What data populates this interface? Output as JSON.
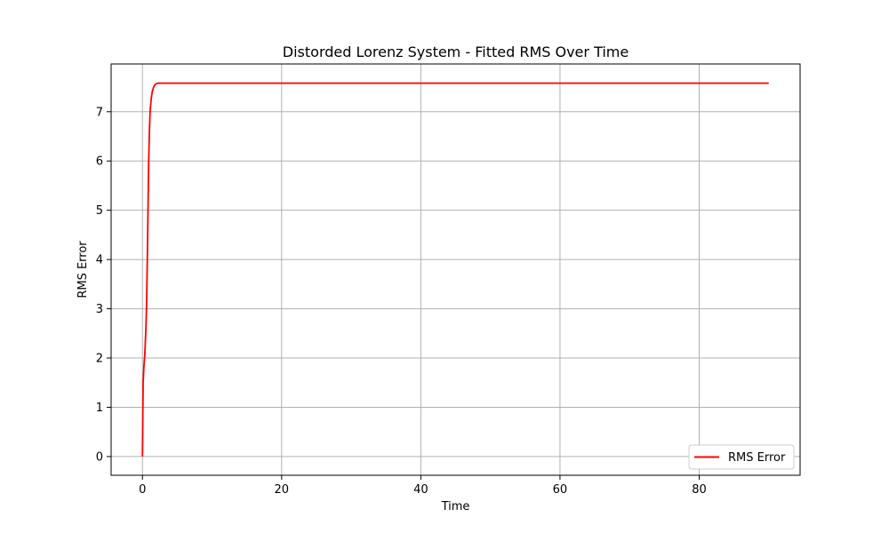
{
  "chart_data": {
    "type": "line",
    "title": "Distorded Lorenz System - Fitted RMS Over Time",
    "xlabel": "Time",
    "ylabel": "RMS Error",
    "xlim": [
      -4.5,
      94.5
    ],
    "ylim": [
      -0.38,
      7.97
    ],
    "xticks": [
      0,
      20,
      40,
      60,
      80
    ],
    "yticks": [
      0,
      1,
      2,
      3,
      4,
      5,
      6,
      7
    ],
    "grid": true,
    "legend_position": "lower right",
    "series": [
      {
        "name": "RMS Error",
        "color": "#ff0000",
        "x": [
          0,
          0.1,
          0.2,
          0.35,
          0.5,
          0.6,
          0.7,
          0.8,
          0.9,
          1.0,
          1.1,
          1.25,
          1.4,
          1.6,
          1.8,
          2.0,
          2.3,
          2.7,
          3.0,
          5,
          10,
          20,
          40,
          60,
          80,
          90
        ],
        "y": [
          0,
          1.5,
          1.8,
          2.1,
          2.6,
          3.1,
          4.0,
          5.0,
          6.0,
          6.6,
          7.0,
          7.25,
          7.4,
          7.5,
          7.55,
          7.57,
          7.58,
          7.58,
          7.58,
          7.58,
          7.58,
          7.58,
          7.58,
          7.58,
          7.58,
          7.58
        ]
      }
    ]
  }
}
